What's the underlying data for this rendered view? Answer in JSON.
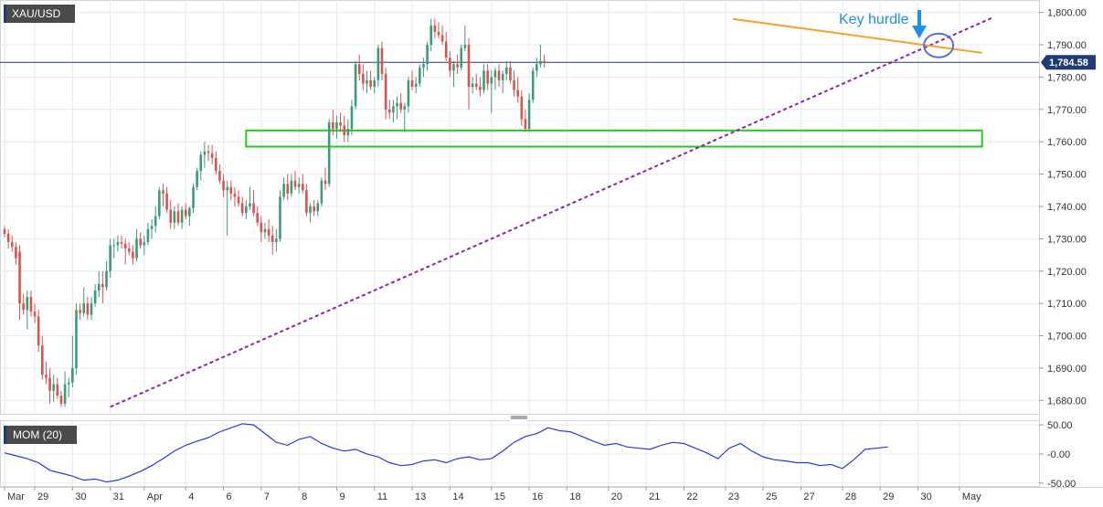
{
  "symbol": "XAU/USD",
  "indicator_label": "MOM (20)",
  "annotation": "Key  hurdle",
  "colors": {
    "up": "#3d9b7a",
    "down": "#d9534f",
    "trendline_dotted": "#8e24aa",
    "trendline_solid": "#f5a32a",
    "support_box": "#26c826",
    "annotation": "#1e90e8",
    "price_line": "#1f3b73",
    "momentum": "#2b35e0",
    "grid": "#e6e9ee",
    "axis_text": "#333333",
    "badge_bg": "#4a4a4a"
  },
  "chart_data": [
    {
      "type": "candlestick",
      "title": "XAU/USD",
      "ylim": [
        1677,
        1803
      ],
      "yticks": [
        1680,
        1690,
        1700,
        1710,
        1720,
        1730,
        1740,
        1750,
        1760,
        1770,
        1780,
        1790,
        1800
      ],
      "ytick_labels": [
        "1,680.00",
        "1,690.00",
        "1,700.00",
        "1,710.00",
        "1,720.00",
        "1,730.00",
        "1,740.00",
        "1,750.00",
        "1,760.00",
        "1,770.00",
        "1,780.00",
        "1,790.00",
        "1,800.00"
      ],
      "x_range": [
        0,
        262
      ],
      "xticks": [
        {
          "x": 0,
          "label": "Mar"
        },
        {
          "x": 8,
          "label": "29"
        },
        {
          "x": 18,
          "label": "30"
        },
        {
          "x": 28,
          "label": "31"
        },
        {
          "x": 37,
          "label": "Apr"
        },
        {
          "x": 48,
          "label": "4"
        },
        {
          "x": 58,
          "label": "6"
        },
        {
          "x": 68,
          "label": "7"
        },
        {
          "x": 78,
          "label": "8"
        },
        {
          "x": 88,
          "label": "9"
        },
        {
          "x": 98,
          "label": "11"
        },
        {
          "x": 108,
          "label": "13"
        },
        {
          "x": 118,
          "label": "14"
        },
        {
          "x": 129,
          "label": "15"
        },
        {
          "x": 139,
          "label": "16"
        },
        {
          "x": 149,
          "label": "18"
        },
        {
          "x": 160,
          "label": "20"
        },
        {
          "x": 170,
          "label": "21"
        },
        {
          "x": 180,
          "label": "22"
        },
        {
          "x": 191,
          "label": "23"
        },
        {
          "x": 201,
          "label": "25"
        },
        {
          "x": 211,
          "label": "27"
        },
        {
          "x": 222,
          "label": "28"
        },
        {
          "x": 232,
          "label": "29"
        },
        {
          "x": 242,
          "label": "30"
        },
        {
          "x": 253,
          "label": "May"
        }
      ],
      "last_price": 1784.58,
      "last_price_label": "1,784.58",
      "candles": [
        [
          1733.0,
          1734.0,
          1730.5,
          1731.5
        ],
        [
          1731.5,
          1733.0,
          1727.0,
          1729.0
        ],
        [
          1729.0,
          1731.0,
          1726.0,
          1727.5
        ],
        [
          1727.5,
          1729.0,
          1722.0,
          1724.0
        ],
        [
          1726.0,
          1728.0,
          1705.0,
          1710.0
        ],
        [
          1710.0,
          1713.0,
          1706.5,
          1708.0
        ],
        [
          1708.0,
          1714.0,
          1702.0,
          1712.0
        ],
        [
          1712.0,
          1714.0,
          1706.0,
          1707.5
        ],
        [
          1707.5,
          1710.0,
          1704.0,
          1706.0
        ],
        [
          1706.0,
          1708.0,
          1695.0,
          1697.0
        ],
        [
          1697.0,
          1700.0,
          1686.5,
          1688.0
        ],
        [
          1688.0,
          1692.0,
          1685.0,
          1687.0
        ],
        [
          1687.0,
          1690.0,
          1679.0,
          1683.0
        ],
        [
          1683.0,
          1688.0,
          1679.5,
          1685.0
        ],
        [
          1685.0,
          1687.0,
          1680.5,
          1681.5
        ],
        [
          1681.5,
          1683.0,
          1678.0,
          1679.0
        ],
        [
          1679.0,
          1689.0,
          1678.0,
          1685.0
        ],
        [
          1685.0,
          1687.0,
          1681.0,
          1685.5
        ],
        [
          1685.5,
          1700.0,
          1684.0,
          1690.0
        ],
        [
          1690.0,
          1710.0,
          1688.0,
          1708.0
        ],
        [
          1708.0,
          1710.0,
          1705.0,
          1707.0
        ],
        [
          1707.0,
          1715.0,
          1706.0,
          1710.0
        ],
        [
          1710.0,
          1712.0,
          1705.0,
          1706.5
        ],
        [
          1706.5,
          1712.0,
          1705.0,
          1710.0
        ],
        [
          1710.0,
          1716.0,
          1709.0,
          1714.0
        ],
        [
          1714.0,
          1720.0,
          1712.0,
          1716.0
        ],
        [
          1716.0,
          1720.0,
          1710.0,
          1715.0
        ],
        [
          1715.0,
          1723.0,
          1714.0,
          1720.0
        ],
        [
          1720.0,
          1730.0,
          1718.0,
          1728.0
        ],
        [
          1728.0,
          1730.0,
          1724.0,
          1728.0
        ],
        [
          1728.0,
          1731.0,
          1726.0,
          1729.0
        ],
        [
          1729.0,
          1731.0,
          1727.0,
          1728.5
        ],
        [
          1728.5,
          1730.0,
          1722.0,
          1727.0
        ],
        [
          1727.0,
          1729.0,
          1725.0,
          1726.0
        ],
        [
          1726.0,
          1728.0,
          1722.0,
          1724.0
        ],
        [
          1724.0,
          1733.0,
          1723.0,
          1730.0
        ],
        [
          1730.0,
          1732.0,
          1727.0,
          1728.0
        ],
        [
          1728.0,
          1731.0,
          1725.0,
          1729.0
        ],
        [
          1729.0,
          1735.0,
          1728.0,
          1733.0
        ],
        [
          1733.0,
          1736.0,
          1730.0,
          1734.0
        ],
        [
          1734.0,
          1740.0,
          1732.0,
          1737.0
        ],
        [
          1737.0,
          1746.0,
          1736.0,
          1745.0
        ],
        [
          1745.0,
          1747.0,
          1740.0,
          1744.0
        ],
        [
          1744.0,
          1746.0,
          1738.0,
          1739.0
        ],
        [
          1739.0,
          1742.0,
          1733.0,
          1735.0
        ],
        [
          1735.0,
          1740.0,
          1733.0,
          1738.5
        ],
        [
          1738.5,
          1741.0,
          1734.0,
          1735.0
        ],
        [
          1735.0,
          1740.0,
          1733.0,
          1739.0
        ],
        [
          1739.0,
          1741.0,
          1736.0,
          1737.0
        ],
        [
          1737.0,
          1740.0,
          1734.0,
          1739.5
        ],
        [
          1739.5,
          1747.0,
          1738.0,
          1746.0
        ],
        [
          1746.0,
          1752.0,
          1745.0,
          1751.0
        ],
        [
          1751.0,
          1757.0,
          1748.0,
          1756.0
        ],
        [
          1756.0,
          1760.0,
          1752.0,
          1757.0
        ],
        [
          1757.0,
          1759.0,
          1754.0,
          1756.5
        ],
        [
          1756.5,
          1759.0,
          1753.0,
          1755.0
        ],
        [
          1755.0,
          1757.0,
          1750.0,
          1751.0
        ],
        [
          1751.0,
          1753.0,
          1747.0,
          1748.0
        ],
        [
          1748.0,
          1750.0,
          1743.0,
          1745.0
        ],
        [
          1745.0,
          1748.0,
          1731.0,
          1746.0
        ],
        [
          1746.0,
          1748.0,
          1742.0,
          1744.0
        ],
        [
          1744.0,
          1746.0,
          1740.0,
          1743.0
        ],
        [
          1743.0,
          1745.0,
          1740.0,
          1741.0
        ],
        [
          1741.0,
          1743.0,
          1737.0,
          1738.0
        ],
        [
          1738.0,
          1742.0,
          1736.0,
          1740.0
        ],
        [
          1740.0,
          1746.0,
          1739.0,
          1741.0
        ],
        [
          1741.0,
          1745.0,
          1737.0,
          1738.0
        ],
        [
          1738.0,
          1740.0,
          1734.0,
          1735.0
        ],
        [
          1735.0,
          1737.0,
          1729.0,
          1732.0
        ],
        [
          1732.0,
          1735.0,
          1730.0,
          1733.0
        ],
        [
          1733.0,
          1736.0,
          1729.0,
          1731.0
        ],
        [
          1731.0,
          1734.0,
          1725.0,
          1729.0
        ],
        [
          1729.0,
          1733.0,
          1726.0,
          1730.0
        ],
        [
          1730.0,
          1745.0,
          1729.0,
          1743.0
        ],
        [
          1743.0,
          1749.0,
          1742.0,
          1747.0
        ],
        [
          1747.0,
          1750.0,
          1742.0,
          1744.0
        ],
        [
          1744.0,
          1750.0,
          1743.0,
          1748.0
        ],
        [
          1748.0,
          1751.0,
          1745.0,
          1746.0
        ],
        [
          1746.0,
          1749.0,
          1744.0,
          1747.0
        ],
        [
          1747.0,
          1750.0,
          1744.0,
          1745.0
        ],
        [
          1745.0,
          1747.0,
          1737.0,
          1738.0
        ],
        [
          1738.0,
          1741.0,
          1735.0,
          1740.0
        ],
        [
          1740.0,
          1742.0,
          1737.0,
          1738.5
        ],
        [
          1738.5,
          1742.0,
          1737.0,
          1741.0
        ],
        [
          1741.0,
          1749.0,
          1740.0,
          1748.0
        ],
        [
          1748.0,
          1752.0,
          1745.0,
          1747.0
        ],
        [
          1747.0,
          1767.0,
          1746.0,
          1766.0
        ],
        [
          1766.0,
          1770.0,
          1762.0,
          1764.0
        ],
        [
          1764.0,
          1768.0,
          1761.0,
          1766.0
        ],
        [
          1766.0,
          1769.0,
          1763.0,
          1765.0
        ],
        [
          1765.0,
          1768.0,
          1760.0,
          1762.0
        ],
        [
          1762.0,
          1767.0,
          1760.0,
          1764.0
        ],
        [
          1764.0,
          1773.0,
          1762.0,
          1771.0
        ],
        [
          1771.0,
          1785.0,
          1770.0,
          1784.0
        ],
        [
          1784.0,
          1787.0,
          1779.0,
          1781.0
        ],
        [
          1781.0,
          1784.0,
          1776.0,
          1778.0
        ],
        [
          1778.0,
          1782.0,
          1775.0,
          1779.0
        ],
        [
          1779.0,
          1782.0,
          1776.0,
          1777.0
        ],
        [
          1777.0,
          1780.0,
          1775.0,
          1779.0
        ],
        [
          1779.0,
          1790.0,
          1777.0,
          1789.0
        ],
        [
          1789.0,
          1791.0,
          1779.0,
          1781.0
        ],
        [
          1781.0,
          1783.0,
          1767.0,
          1770.0
        ],
        [
          1770.0,
          1773.0,
          1767.0,
          1769.0
        ],
        [
          1769.0,
          1773.0,
          1766.0,
          1771.0
        ],
        [
          1771.0,
          1774.0,
          1767.0,
          1772.0
        ],
        [
          1772.0,
          1775.0,
          1769.0,
          1770.0
        ],
        [
          1770.0,
          1772.0,
          1763.0,
          1771.0
        ],
        [
          1771.0,
          1780.0,
          1769.0,
          1779.0
        ],
        [
          1779.0,
          1782.0,
          1776.0,
          1777.0
        ],
        [
          1777.0,
          1780.0,
          1775.0,
          1778.0
        ],
        [
          1778.0,
          1784.0,
          1777.0,
          1783.0
        ],
        [
          1783.0,
          1786.0,
          1780.0,
          1784.0
        ],
        [
          1784.0,
          1791.0,
          1782.0,
          1790.0
        ],
        [
          1790.0,
          1798.0,
          1788.0,
          1796.0
        ],
        [
          1796.0,
          1798.0,
          1792.0,
          1794.0
        ],
        [
          1794.0,
          1797.0,
          1792.0,
          1793.0
        ],
        [
          1793.0,
          1796.0,
          1790.0,
          1791.0
        ],
        [
          1791.0,
          1794.0,
          1785.0,
          1786.0
        ],
        [
          1786.0,
          1788.0,
          1780.0,
          1782.0
        ],
        [
          1782.0,
          1785.0,
          1777.0,
          1784.0
        ],
        [
          1784.0,
          1787.0,
          1781.0,
          1783.0
        ],
        [
          1783.0,
          1790.0,
          1782.0,
          1789.0
        ],
        [
          1789.0,
          1796.0,
          1788.0,
          1790.0
        ],
        [
          1790.0,
          1792.0,
          1770.0,
          1777.0
        ],
        [
          1777.0,
          1780.0,
          1775.0,
          1778.0
        ],
        [
          1778.0,
          1781.0,
          1776.0,
          1777.0
        ],
        [
          1777.0,
          1780.0,
          1774.0,
          1776.0
        ],
        [
          1776.0,
          1784.0,
          1775.0,
          1782.0
        ],
        [
          1782.0,
          1784.0,
          1776.0,
          1778.0
        ],
        [
          1778.0,
          1782.0,
          1769.0,
          1780.0
        ],
        [
          1780.0,
          1783.0,
          1776.0,
          1782.0
        ],
        [
          1782.0,
          1784.0,
          1777.0,
          1779.0
        ],
        [
          1779.0,
          1782.0,
          1775.0,
          1781.0
        ],
        [
          1781.0,
          1785.0,
          1779.0,
          1783.0
        ],
        [
          1783.0,
          1785.0,
          1778.0,
          1779.0
        ],
        [
          1779.0,
          1782.0,
          1774.0,
          1776.0
        ],
        [
          1776.0,
          1780.0,
          1772.0,
          1774.0
        ],
        [
          1774.0,
          1776.0,
          1765.0,
          1767.0
        ],
        [
          1767.0,
          1770.0,
          1763.0,
          1764.0
        ],
        [
          1764.0,
          1775.0,
          1763.0,
          1773.0
        ],
        [
          1773.0,
          1783.0,
          1772.0,
          1782.0
        ],
        [
          1782.0,
          1786.0,
          1780.0,
          1784.0
        ],
        [
          1784.0,
          1790.0,
          1783.0,
          1785.0
        ],
        [
          1785.0,
          1787.0,
          1783.0,
          1784.58
        ]
      ],
      "support_zone": [
        1758.5,
        1763.5
      ],
      "rising_trendline": [
        [
          28,
          1678.0
        ],
        [
          262,
          1798.5
        ]
      ],
      "falling_trendline": [
        [
          193,
          1798.0
        ],
        [
          259,
          1787.5
        ]
      ]
    },
    {
      "type": "line",
      "title": "MOM (20)",
      "ylim": [
        -55,
        58
      ],
      "yticks": [
        50,
        0,
        -50
      ],
      "ytick_labels": [
        "50.00",
        "-0.00",
        "-50.00"
      ],
      "x_range": [
        0,
        262
      ],
      "series": [
        {
          "name": "MOM (20)",
          "x": [
            0,
            3,
            6,
            9,
            12,
            15,
            18,
            21,
            24,
            27,
            30,
            33,
            36,
            39,
            42,
            45,
            48,
            51,
            54,
            57,
            60,
            63,
            66,
            69,
            72,
            75,
            78,
            81,
            84,
            87,
            90,
            93,
            96,
            99,
            102,
            105,
            108,
            111,
            114,
            117,
            120,
            123,
            126,
            129,
            132,
            135,
            138,
            141,
            144,
            147,
            150,
            153,
            156,
            159,
            162,
            165,
            168,
            171,
            174,
            177,
            180,
            183,
            186,
            189,
            192,
            195,
            198,
            201,
            204,
            207,
            210,
            213,
            216,
            219,
            222,
            225,
            228,
            231,
            234
          ],
          "values": [
            2,
            -3,
            -8,
            -15,
            -28,
            -33,
            -38,
            -45,
            -43,
            -48,
            -45,
            -38,
            -30,
            -20,
            -8,
            5,
            15,
            22,
            28,
            38,
            45,
            52,
            50,
            35,
            20,
            15,
            25,
            30,
            18,
            10,
            5,
            8,
            0,
            -5,
            -15,
            -20,
            -18,
            -12,
            -10,
            -15,
            -8,
            -5,
            -10,
            -8,
            5,
            20,
            30,
            35,
            45,
            40,
            38,
            30,
            22,
            15,
            18,
            12,
            10,
            8,
            15,
            20,
            18,
            10,
            2,
            -8,
            10,
            18,
            5,
            -5,
            -10,
            -12,
            -15,
            -15,
            -20,
            -18,
            -25,
            -10,
            8,
            10,
            12
          ]
        }
      ]
    }
  ]
}
